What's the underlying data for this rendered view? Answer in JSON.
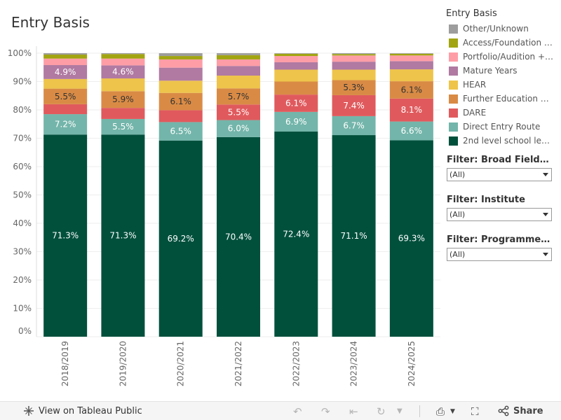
{
  "title": "Entry Basis",
  "chart_data": {
    "type": "bar",
    "stacked": true,
    "normalized": true,
    "categories": [
      "2018/2019",
      "2019/2020",
      "2020/2021",
      "2021/2022",
      "2022/2023",
      "2023/2024",
      "2024/2025"
    ],
    "ylim": [
      0,
      100
    ],
    "yticks": [
      "0%",
      "10%",
      "20%",
      "30%",
      "40%",
      "50%",
      "60%",
      "70%",
      "80%",
      "90%",
      "100%"
    ],
    "series": [
      {
        "name": "2nd level school leav...",
        "color": "#00503c",
        "values": [
          71.3,
          71.3,
          69.2,
          70.4,
          72.4,
          71.1,
          69.3
        ],
        "labels": [
          "71.3%",
          "71.3%",
          "69.2%",
          "70.4%",
          "72.4%",
          "71.1%",
          "69.3%"
        ]
      },
      {
        "name": "Direct Entry Route",
        "color": "#73b5aa",
        "values": [
          7.2,
          5.5,
          6.5,
          6.0,
          6.9,
          6.7,
          6.6
        ],
        "labels": [
          "7.2%",
          "5.5%",
          "6.5%",
          "6.0%",
          "6.9%",
          "6.7%",
          "6.6%"
        ]
      },
      {
        "name": "DARE",
        "color": "#e05a5d",
        "values": [
          3.5,
          3.9,
          4.2,
          5.5,
          6.1,
          7.4,
          8.1
        ],
        "labels": [
          "",
          "",
          "",
          "5.5%",
          "6.1%",
          "7.4%",
          "8.1%"
        ]
      },
      {
        "name": "Further Education A...",
        "color": "#d98b45",
        "values": [
          5.5,
          5.9,
          6.1,
          5.7,
          4.6,
          5.3,
          6.1
        ],
        "labels": [
          "5.5%",
          "5.9%",
          "6.1%",
          "5.7%",
          "",
          "5.3%",
          "6.1%"
        ]
      },
      {
        "name": "HEAR",
        "color": "#eec44b",
        "values": [
          3.4,
          4.5,
          4.3,
          4.5,
          4.2,
          3.7,
          4.2
        ],
        "labels": [
          "",
          "",
          "",
          "",
          "",
          "",
          ""
        ]
      },
      {
        "name": "Mature Years",
        "color": "#b07aa2",
        "values": [
          4.9,
          4.6,
          4.6,
          3.4,
          2.6,
          2.8,
          2.9
        ],
        "labels": [
          "4.9%",
          "4.6%",
          "",
          "",
          "",
          "",
          ""
        ]
      },
      {
        "name": "Portfolio/Audition + ...",
        "color": "#ff9da7",
        "values": [
          2.3,
          2.4,
          2.9,
          2.3,
          2.2,
          2.2,
          2.0
        ],
        "labels": [
          "",
          "",
          "",
          "",
          "",
          "",
          ""
        ]
      },
      {
        "name": "Access/Foundation c...",
        "color": "#a2a511",
        "values": [
          1.4,
          1.6,
          1.2,
          1.5,
          0.8,
          0.5,
          0.6
        ],
        "labels": [
          "",
          "",
          "",
          "",
          "",
          "",
          ""
        ]
      },
      {
        "name": "Other/Unknown",
        "color": "#9d9d9d",
        "values": [
          0.5,
          0.3,
          1.0,
          0.7,
          0.2,
          0.3,
          0.2
        ],
        "labels": [
          "",
          "",
          "",
          "",
          "",
          "",
          ""
        ]
      }
    ],
    "legend": {
      "title": "Entry Basis",
      "position": "right"
    },
    "grid": true
  },
  "legend_items": [
    {
      "label": "Other/Unknown",
      "color": "#9d9d9d"
    },
    {
      "label": "Access/Foundation c...",
      "color": "#a2a511"
    },
    {
      "label": "Portfolio/Audition + ...",
      "color": "#ff9da7"
    },
    {
      "label": "Mature Years",
      "color": "#b07aa2"
    },
    {
      "label": "HEAR",
      "color": "#eec44b"
    },
    {
      "label": "Further Education A...",
      "color": "#d98b45"
    },
    {
      "label": "DARE",
      "color": "#e05a5d"
    },
    {
      "label": "Direct Entry Route",
      "color": "#73b5aa"
    },
    {
      "label": "2nd level school leav...",
      "color": "#00503c"
    }
  ],
  "filters": [
    {
      "title": "Filter: Broad Field of St...",
      "value": "(All)"
    },
    {
      "title": "Filter: Institute",
      "value": "(All)"
    },
    {
      "title": "Filter: Programme Type",
      "value": "(All)"
    }
  ],
  "footer": {
    "view_label": "View on Tableau Public",
    "share_label": "Share"
  }
}
